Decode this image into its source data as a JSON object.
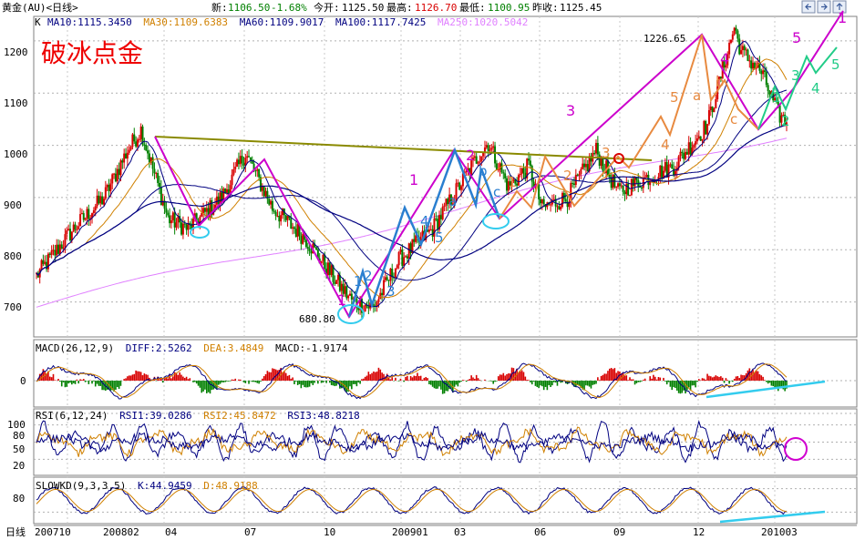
{
  "header": {
    "symbol": "黄金(AU)<日线>",
    "latest_label": "新:",
    "latest": "1106.50",
    "change": "-1.68%",
    "open_label": "今开:",
    "open": "1125.50",
    "high_label": "最高:",
    "high": "1126.70",
    "low_label": "最低:",
    "low": "1100.95",
    "prev_close_label": "昨收:",
    "prev_close": "1125.45"
  },
  "nav_icons": [
    "arrow-left-icon",
    "arrow-right-icon",
    "arrow-up-icon"
  ],
  "main_panel": {
    "legend_k": "K",
    "legend": [
      {
        "text": "MA10:1115.3450",
        "color": "#000080"
      },
      {
        "text": "MA30:1109.6383",
        "color": "#d08000"
      },
      {
        "text": "MA60:1109.9017",
        "color": "#000080"
      },
      {
        "text": "MA100:1117.7425",
        "color": "#000080"
      },
      {
        "text": "MA250:1020.5042",
        "color": "#e080ff"
      }
    ],
    "title_overlay": "破冰点金",
    "y_ticks": [
      "1200",
      "1100",
      "1000",
      "900",
      "800",
      "700"
    ],
    "annotations": {
      "high_price": "1226.65",
      "low_price": "680.80"
    }
  },
  "macd_panel": {
    "legend": [
      {
        "text": "MACD(26,12,9)",
        "color": "#000000"
      },
      {
        "text": "DIFF:2.5262",
        "color": "#000080"
      },
      {
        "text": "DEA:3.4849",
        "color": "#d08000"
      },
      {
        "text": "MACD:-1.9174",
        "color": "#000000"
      }
    ],
    "y_ticks": [
      "0"
    ]
  },
  "rsi_panel": {
    "legend": [
      {
        "text": "RSI(6,12,24)",
        "color": "#000000"
      },
      {
        "text": "RSI1:39.0286",
        "color": "#000080"
      },
      {
        "text": "RSI2:45.8472",
        "color": "#d08000"
      },
      {
        "text": "RSI3:48.8218",
        "color": "#000080"
      }
    ],
    "y_ticks": [
      "100",
      "80",
      "50",
      "20"
    ]
  },
  "kd_panel": {
    "legend": [
      {
        "text": "SLOWKD(9,3,3,5)",
        "color": "#000000"
      },
      {
        "text": "K:44.9459",
        "color": "#000080"
      },
      {
        "text": "D:48.9188",
        "color": "#d08000"
      }
    ],
    "y_ticks": [
      "80"
    ]
  },
  "x_axis": {
    "label": "日线",
    "ticks": [
      "200710",
      "200802",
      "04",
      "07",
      "10",
      "200901",
      "03",
      "06",
      "09",
      "12",
      "201003"
    ]
  },
  "wave_labels": {
    "magenta": [
      "1",
      "1",
      "2",
      "3",
      "4",
      "5",
      "1"
    ],
    "blue": [
      "1",
      "2",
      "3",
      "4",
      "5",
      "a",
      "b",
      "c"
    ],
    "orange": [
      "1",
      "2",
      "3",
      "4",
      "5",
      "a",
      "b",
      "c"
    ],
    "green": [
      "1",
      "2",
      "3",
      "4",
      "5"
    ]
  },
  "colors": {
    "magenta": "#cc00cc",
    "blue": "#2a7fd0",
    "orange": "#e88a40",
    "green": "#22cc88",
    "trend_line": "#8a8a00",
    "cyan": "#33ccee",
    "up_candle": "#d80000",
    "down_candle": "#008000",
    "ma_slow": "#e080ff",
    "red_title": "#ee0000"
  },
  "chart_data": {
    "type": "line",
    "title": "",
    "main": {
      "ylim": [
        640,
        1240
      ],
      "close_path_months": [
        "200710",
        "200802",
        "04",
        "07",
        "10",
        "200901",
        "03",
        "06",
        "09",
        "12",
        "201003"
      ],
      "price_keypoints": [
        {
          "x": "200710",
          "y": 750
        },
        {
          "x": "200802",
          "y": 950
        },
        {
          "x": "200803",
          "y": 1030
        },
        {
          "x": "04",
          "y": 850
        },
        {
          "x": "07",
          "y": 985
        },
        {
          "x": "10",
          "y": 680.8
        },
        {
          "x": "200901",
          "y": 900
        },
        {
          "x": "02",
          "y": 1005
        },
        {
          "x": "04",
          "y": 870
        },
        {
          "x": "06",
          "y": 990
        },
        {
          "x": "07",
          "y": 905
        },
        {
          "x": "09",
          "y": 1010
        },
        {
          "x": "12",
          "y": 1226.65
        },
        {
          "x": "201002",
          "y": 1045
        },
        {
          "x": "201003",
          "y": 1106.5
        }
      ],
      "series": [
        {
          "name": "MA10",
          "last": 1115.345
        },
        {
          "name": "MA30",
          "last": 1109.6383
        },
        {
          "name": "MA60",
          "last": 1109.9017
        },
        {
          "name": "MA100",
          "last": 1117.7425
        },
        {
          "name": "MA250",
          "last": 1020.5042
        }
      ]
    },
    "macd": {
      "ylim": [
        -40,
        40
      ],
      "DIFF": 2.5262,
      "DEA": 3.4849,
      "MACD": -1.9174
    },
    "rsi": {
      "ylim": [
        0,
        100
      ],
      "RSI1": 39.0286,
      "RSI2": 45.8472,
      "RSI3": 48.8218
    },
    "kd": {
      "ylim": [
        0,
        100
      ],
      "K": 44.9459,
      "D": 48.9188
    }
  }
}
